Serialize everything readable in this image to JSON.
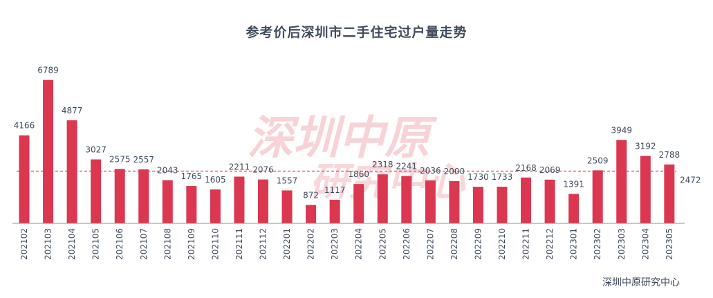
{
  "chart_data": {
    "type": "bar",
    "title": "参考价后深圳市二手住宅过户量走势",
    "source": "深圳中原研究中心",
    "watermark": [
      "深圳中原",
      "研究中心"
    ],
    "categories": [
      "202102",
      "202103",
      "202104",
      "202105",
      "202106",
      "202107",
      "202108",
      "202109",
      "202110",
      "202111",
      "202112",
      "202201",
      "202202",
      "202203",
      "202204",
      "202205",
      "202206",
      "202207",
      "202208",
      "202209",
      "202210",
      "202211",
      "202212",
      "202301",
      "202302",
      "202303",
      "202304",
      "202305"
    ],
    "values": [
      4166,
      6789,
      4877,
      3027,
      2575,
      2557,
      2043,
      1765,
      1605,
      2211,
      2076,
      1557,
      872,
      1117,
      1860,
      2318,
      2241,
      2036,
      2000,
      1730,
      1733,
      2168,
      2069,
      1391,
      2509,
      3949,
      3192,
      2788
    ],
    "average_line": {
      "value": 2472,
      "label": "2472",
      "style": "dashed"
    },
    "ylim": [
      0,
      7300
    ],
    "grid": false,
    "legend": "none",
    "colors": {
      "bar": "#dc3750",
      "average": "#e03a4a",
      "axis": "#8a93a6",
      "text": "#3e4a5c"
    }
  }
}
